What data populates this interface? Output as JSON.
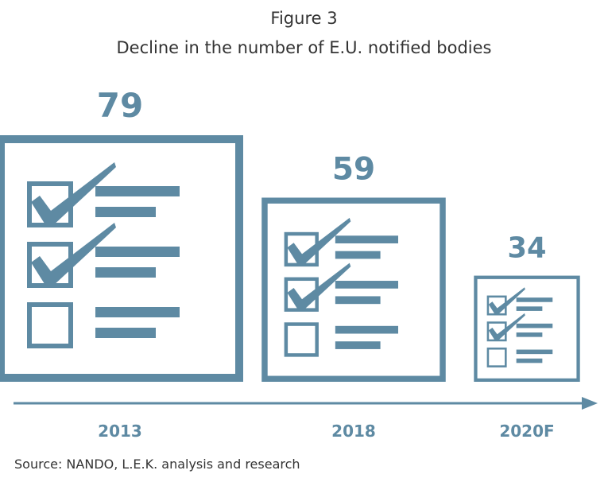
{
  "figure_label": "Figure 3",
  "title": "Decline in the number of E.U. notified bodies",
  "source": "Source: NANDO, L.E.K. analysis and research",
  "colors": {
    "primary": "#5e8aa3",
    "text": "#333333"
  },
  "chart_data": {
    "type": "bar",
    "categories": [
      "2013",
      "2018",
      "2020F"
    ],
    "values": [
      79,
      59,
      34
    ],
    "data_labels": [
      "79",
      "59",
      "34"
    ],
    "checked_items": [
      2,
      2,
      2
    ],
    "title": "Decline in the number of E.U. notified bodies",
    "xlabel": "",
    "ylabel": "",
    "grid": false,
    "legend": "none"
  }
}
